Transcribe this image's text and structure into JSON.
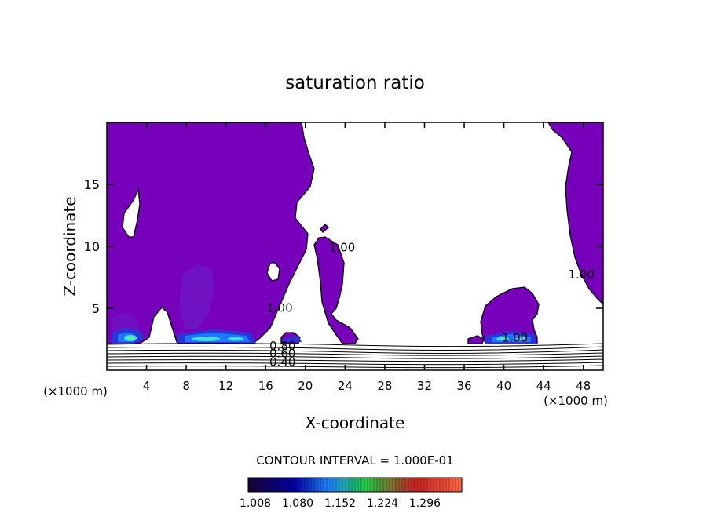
{
  "chart_data": {
    "type": "contour",
    "title": "saturation ratio",
    "xlabel": "X-coordinate",
    "ylabel": "Z-coordinate",
    "x_unit": "(×1000 m)",
    "x_unit_right": "(×1000 m)",
    "xlim": [
      0,
      50
    ],
    "ylim": [
      0,
      20
    ],
    "x_ticks": [
      4,
      8,
      12,
      16,
      20,
      24,
      28,
      32,
      36,
      40,
      44,
      48
    ],
    "y_ticks": [
      5,
      10,
      15
    ],
    "contour_interval_text": "CONTOUR INTERVAL = 1.000E-01",
    "colorbar": {
      "labels": [
        "1.008",
        "1.080",
        "1.152",
        "1.224",
        "1.296"
      ],
      "colors": [
        "#1a0033",
        "#0000aa",
        "#2288ff",
        "#22cc44",
        "#cc2222",
        "#ff6644"
      ]
    },
    "contour_labels": [
      {
        "text": "1.00",
        "x": 23.7,
        "z": 9.6
      },
      {
        "text": "1.00",
        "x": 47.8,
        "z": 7.4
      },
      {
        "text": "1.00",
        "x": 17.4,
        "z": 4.7
      },
      {
        "text": "1.00",
        "x": 41.1,
        "z": 2.3
      },
      {
        "text": "0.80",
        "x": 17.7,
        "z": 1.65
      },
      {
        "text": "0.60",
        "x": 17.7,
        "z": 1.05
      },
      {
        "text": "0.40",
        "x": 17.7,
        "z": 0.35
      }
    ],
    "fill_color_primary": "#7700bb"
  }
}
